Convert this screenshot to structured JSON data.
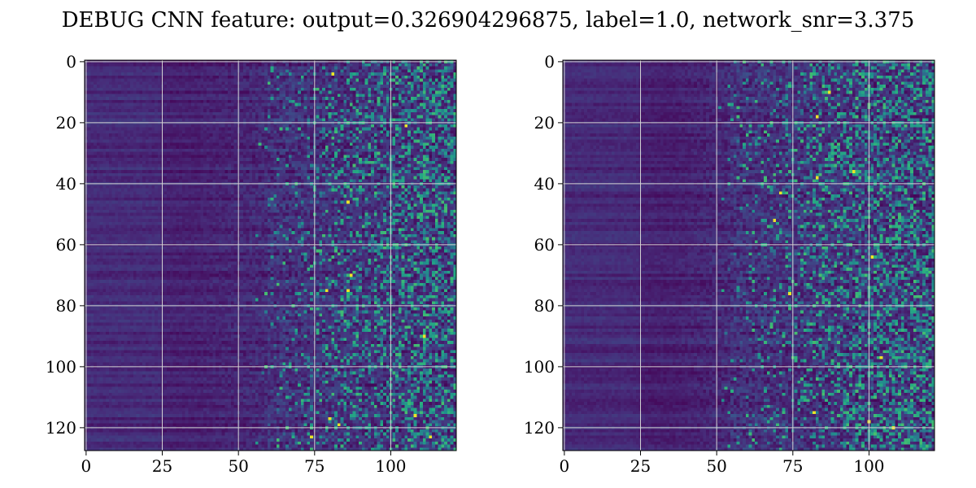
{
  "figure": {
    "suptitle": "DEBUG CNN feature: output=0.326904296875, label=1.0, network_snr=3.375"
  },
  "chart_data": [
    {
      "type": "heatmap",
      "colormap": "viridis",
      "rows": 128,
      "cols": 122,
      "xlim": [
        -0.5,
        121.5
      ],
      "ylim": [
        127.5,
        -0.5
      ],
      "x_ticks": [
        0,
        25,
        50,
        75,
        100
      ],
      "x_tick_labels": [
        "0",
        "25",
        "50",
        "75",
        "100"
      ],
      "y_ticks": [
        0,
        20,
        40,
        60,
        80,
        100,
        120
      ],
      "y_tick_labels": [
        "0",
        "20",
        "40",
        "60",
        "80",
        "100",
        "120"
      ],
      "grid": true,
      "structure": "dark purple at low columns; noisy teal/green speckle increasing beyond column ~60; occasional yellow pixels",
      "bright_pixels": [
        [
          81,
          4
        ],
        [
          86,
          46
        ],
        [
          87,
          70
        ],
        [
          86,
          75
        ],
        [
          79,
          75
        ],
        [
          105,
          21
        ],
        [
          113,
          123
        ],
        [
          74,
          123
        ],
        [
          80,
          117
        ],
        [
          83,
          119
        ],
        [
          111,
          90
        ],
        [
          108,
          116
        ]
      ]
    },
    {
      "type": "heatmap",
      "colormap": "viridis",
      "rows": 128,
      "cols": 122,
      "xlim": [
        -0.5,
        121.5
      ],
      "ylim": [
        127.5,
        -0.5
      ],
      "x_ticks": [
        0,
        25,
        50,
        75,
        100
      ],
      "x_tick_labels": [
        "0",
        "25",
        "50",
        "75",
        "100"
      ],
      "y_ticks": [
        0,
        20,
        40,
        60,
        80,
        100,
        120
      ],
      "y_tick_labels": [
        "0",
        "20",
        "40",
        "60",
        "80",
        "100",
        "120"
      ],
      "grid": true,
      "structure": "dark purple at low columns; noisy teal/green speckle increasing beyond column ~55; occasional yellow pixels",
      "bright_pixels": [
        [
          87,
          10
        ],
        [
          83,
          18
        ],
        [
          95,
          36
        ],
        [
          83,
          38
        ],
        [
          69,
          52
        ],
        [
          71,
          43
        ],
        [
          101,
          64
        ],
        [
          100,
          118
        ],
        [
          82,
          115
        ],
        [
          74,
          76
        ],
        [
          108,
          120
        ],
        [
          104,
          97
        ]
      ]
    }
  ]
}
